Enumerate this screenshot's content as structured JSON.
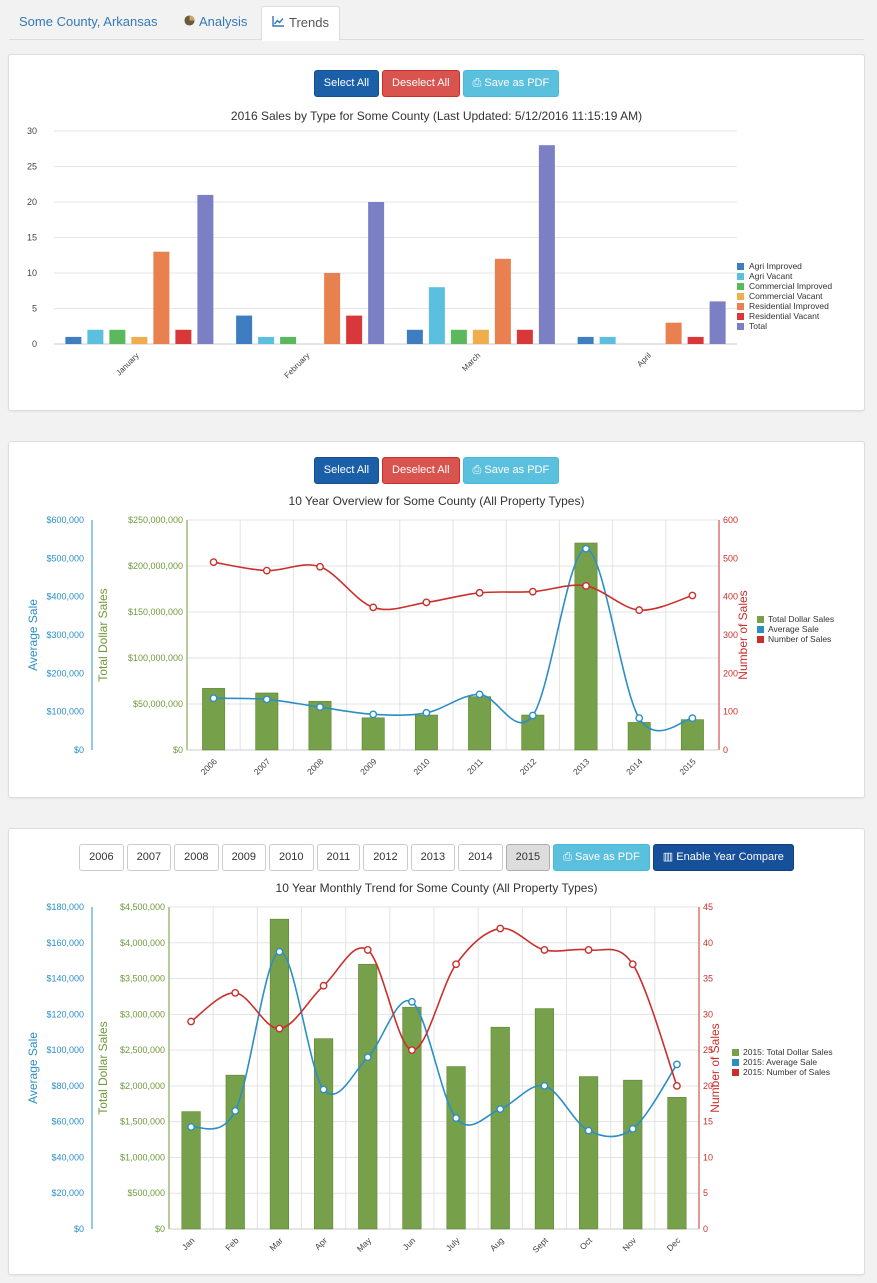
{
  "tabs": [
    {
      "label": "Some County, Arkansas"
    },
    {
      "label": "Analysis"
    },
    {
      "label": "Trends"
    }
  ],
  "panel1": {
    "buttons": {
      "select_all": "Select All",
      "deselect_all": "Deselect All",
      "save_pdf": "Save as PDF"
    }
  },
  "panel2": {
    "buttons": {
      "select_all": "Select All",
      "deselect_all": "Deselect All",
      "save_pdf": "Save as PDF"
    }
  },
  "panel3": {
    "years": [
      "2006",
      "2007",
      "2008",
      "2009",
      "2010",
      "2011",
      "2012",
      "2013",
      "2014",
      "2015"
    ],
    "selected_year": "2015",
    "buttons": {
      "save_pdf": "Save as PDF",
      "enable_compare": "Enable Year Compare"
    }
  },
  "chart_data": [
    {
      "type": "bar",
      "title": "2016 Sales by Type for Some County (Last Updated: 5/12/2016 11:15:19 AM)",
      "categories": [
        "January",
        "February",
        "March",
        "April"
      ],
      "ylim": [
        0,
        30
      ],
      "yticks": [
        0,
        5,
        10,
        15,
        20,
        25,
        30
      ],
      "legend_position": "right",
      "series": [
        {
          "name": "Agri Improved",
          "color": "#3e7dbf",
          "values": [
            1,
            4,
            2,
            1
          ]
        },
        {
          "name": "Agri Vacant",
          "color": "#5bbfdf",
          "values": [
            2,
            1,
            8,
            1
          ]
        },
        {
          "name": "Commercial Improved",
          "color": "#5cb85c",
          "values": [
            2,
            1,
            2,
            0
          ]
        },
        {
          "name": "Commercial Vacant",
          "color": "#f0ad4e",
          "values": [
            1,
            0,
            2,
            0
          ]
        },
        {
          "name": "Residential Improved",
          "color": "#e8804f",
          "values": [
            13,
            10,
            12,
            3
          ]
        },
        {
          "name": "Residential Vacant",
          "color": "#d9383a",
          "values": [
            2,
            4,
            2,
            1
          ]
        },
        {
          "name": "Total",
          "color": "#7b7fc4",
          "values": [
            21,
            20,
            28,
            6
          ]
        }
      ]
    },
    {
      "type": "bar+line",
      "title": "10 Year Overview for Some County (All Property Types)",
      "categories": [
        "2006",
        "2007",
        "2008",
        "2009",
        "2010",
        "2011",
        "2012",
        "2013",
        "2014",
        "2015"
      ],
      "legend_position": "right",
      "axes": {
        "average_sale": {
          "label": "Average Sale",
          "ticks": [
            "$0",
            "$100,000",
            "$200,000",
            "$300,000",
            "$400,000",
            "$500,000",
            "$600,000"
          ],
          "max": 600000,
          "color": "#2b8fc6"
        },
        "total_dollar": {
          "label": "Total Dollar Sales",
          "ticks": [
            "$0",
            "$50,000,000",
            "$100,000,000",
            "$150,000,000",
            "$200,000,000",
            "$250,000,000"
          ],
          "max": 250000000,
          "color": "#6f9a3c"
        },
        "number_sales": {
          "label": "Number of Sales",
          "ticks": [
            "0",
            "100",
            "200",
            "300",
            "400",
            "500",
            "600"
          ],
          "max": 600,
          "color": "#c9302c"
        }
      },
      "series": [
        {
          "name": "Total Dollar Sales",
          "type": "bar",
          "color": "#77a04a",
          "axis": "total_dollar",
          "values": [
            67000000,
            62000000,
            53000000,
            35000000,
            38000000,
            58000000,
            38000000,
            225000000,
            30000000,
            33000000
          ]
        },
        {
          "name": "Average Sale",
          "type": "line",
          "color": "#2b8fc6",
          "axis": "average_sale",
          "values": [
            135000,
            132000,
            112000,
            93000,
            97000,
            145000,
            90000,
            525000,
            83000,
            83000
          ]
        },
        {
          "name": "Number of Sales",
          "type": "line",
          "color": "#c9302c",
          "axis": "number_sales",
          "values": [
            490,
            468,
            478,
            372,
            385,
            410,
            413,
            428,
            365,
            403
          ]
        }
      ]
    },
    {
      "type": "bar+line",
      "title": "10 Year Monthly Trend for Some County (All Property Types)",
      "categories": [
        "Jan",
        "Feb",
        "Mar",
        "Apr",
        "May",
        "Jun",
        "July",
        "Aug",
        "Sept",
        "Oct",
        "Nov",
        "Dec"
      ],
      "legend_position": "right",
      "axes": {
        "average_sale": {
          "label": "Average Sale",
          "ticks": [
            "$0",
            "$20,000",
            "$40,000",
            "$60,000",
            "$80,000",
            "$100,000",
            "$120,000",
            "$140,000",
            "$160,000",
            "$180,000"
          ],
          "max": 180000,
          "color": "#2b8fc6"
        },
        "total_dollar": {
          "label": "Total Dollar Sales",
          "ticks": [
            "$0",
            "$500,000",
            "$1,000,000",
            "$1,500,000",
            "$2,000,000",
            "$2,500,000",
            "$3,000,000",
            "$3,500,000",
            "$4,000,000",
            "$4,500,000"
          ],
          "max": 4500000,
          "color": "#6f9a3c"
        },
        "number_sales": {
          "label": "Number of Sales",
          "ticks": [
            "0",
            "5",
            "10",
            "15",
            "20",
            "25",
            "30",
            "35",
            "40",
            "45"
          ],
          "max": 45,
          "color": "#c9302c"
        }
      },
      "series": [
        {
          "name": "2015: Total Dollar Sales",
          "type": "bar",
          "color": "#77a04a",
          "axis": "total_dollar",
          "values": [
            1640000,
            2150000,
            4330000,
            2660000,
            3700000,
            3100000,
            2270000,
            2820000,
            3080000,
            2130000,
            2080000,
            1840000
          ]
        },
        {
          "name": "2015: Average Sale",
          "type": "line",
          "color": "#2b8fc6",
          "axis": "average_sale",
          "values": [
            57000,
            66000,
            155000,
            78000,
            96000,
            127000,
            62000,
            67000,
            80000,
            55000,
            56000,
            92000
          ]
        },
        {
          "name": "2015: Number of Sales",
          "type": "line",
          "color": "#c9302c",
          "axis": "number_sales",
          "values": [
            29,
            33,
            28,
            34,
            39,
            25,
            37,
            42,
            39,
            39,
            37,
            20
          ]
        }
      ]
    }
  ]
}
